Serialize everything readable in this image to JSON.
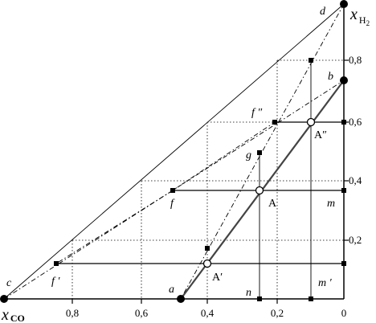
{
  "diagram": {
    "axes": {
      "y_name": "x",
      "y_sub": "H",
      "y_sub2": "2",
      "x_name": "x",
      "x_sub": "CO",
      "y_ticks": [
        "0,2",
        "0,4",
        "0,6",
        "0,8"
      ],
      "x_ticks": [
        "0,8",
        "0,6",
        "0,4",
        "0,2",
        "0"
      ]
    },
    "points": {
      "a": "a",
      "b": "b",
      "c": "c",
      "d": "d",
      "f": "f",
      "f_prime": "f ′",
      "f_dprime": "f ″",
      "g": "g",
      "m": "m",
      "m_prime": "m ′",
      "n": "n",
      "A": "A",
      "A_prime": "A′",
      "A_dprime": "A″"
    }
  }
}
